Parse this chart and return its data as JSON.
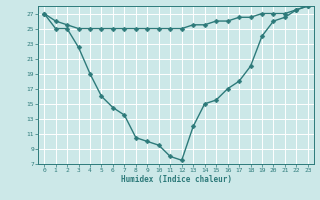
{
  "xlabel": "Humidex (Indice chaleur)",
  "x": [
    0,
    1,
    2,
    3,
    4,
    5,
    6,
    7,
    8,
    9,
    10,
    11,
    12,
    13,
    14,
    15,
    16,
    17,
    18,
    19,
    20,
    21,
    22,
    23
  ],
  "line1": [
    27,
    26,
    25.5,
    25,
    25,
    25,
    25,
    25,
    25,
    25,
    25,
    25,
    25,
    25.5,
    25.5,
    26,
    26,
    26.5,
    26.5,
    27,
    27,
    27,
    27.5,
    28
  ],
  "line2": [
    27,
    25,
    25,
    22.5,
    19,
    16,
    14.5,
    13.5,
    10.5,
    10,
    9.5,
    8,
    7.5,
    12,
    15,
    15.5,
    17,
    18,
    20,
    24,
    26,
    26.5,
    27.5,
    28
  ],
  "ylim": [
    7,
    28
  ],
  "xlim": [
    -0.5,
    23.5
  ],
  "yticks": [
    7,
    9,
    11,
    13,
    15,
    17,
    19,
    21,
    23,
    25,
    27
  ],
  "xticks": [
    0,
    1,
    2,
    3,
    4,
    5,
    6,
    7,
    8,
    9,
    10,
    11,
    12,
    13,
    14,
    15,
    16,
    17,
    18,
    19,
    20,
    21,
    22,
    23
  ],
  "bg_color": "#cce8e8",
  "grid_color": "#ffffff",
  "line_color": "#2d7a7a",
  "marker_size": 2.5,
  "line_width": 1.0
}
